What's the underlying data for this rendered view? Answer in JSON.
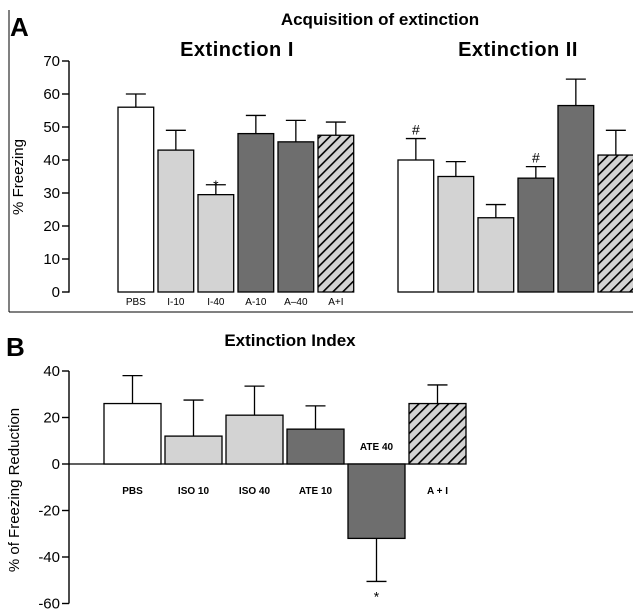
{
  "colors": {
    "white": "#ffffff",
    "light_gray": "#d3d3d3",
    "dark_gray": "#6e6e6e",
    "hatch_bg": "#d3d3d3",
    "stroke": "#000000"
  },
  "chart_data": [
    {
      "panel": "A",
      "type": "bar",
      "title": "Acquisition of extinction",
      "ylabel": "% Freezing",
      "ylim": [
        0,
        70
      ],
      "yticks": [
        0,
        10,
        20,
        30,
        40,
        50,
        60,
        70
      ],
      "groups": [
        {
          "name": "Extinction I",
          "bars": [
            {
              "category": "PBS",
              "value": 56,
              "error": 4,
              "fill": "white",
              "marker": ""
            },
            {
              "category": "I-10",
              "value": 43,
              "error": 6,
              "fill": "light_gray",
              "marker": ""
            },
            {
              "category": "I-40",
              "value": 29.5,
              "error": 3,
              "fill": "light_gray",
              "marker": "*"
            },
            {
              "category": "A-10",
              "value": 48,
              "error": 5.5,
              "fill": "dark_gray",
              "marker": ""
            },
            {
              "category": "A–40",
              "value": 45.5,
              "error": 6.5,
              "fill": "dark_gray",
              "marker": ""
            },
            {
              "category": "A+I",
              "value": 47.5,
              "error": 4,
              "fill": "hatch",
              "marker": ""
            }
          ]
        },
        {
          "name": "Extinction II",
          "bars": [
            {
              "category": "",
              "value": 40,
              "error": 6.5,
              "fill": "white",
              "marker": "#"
            },
            {
              "category": "",
              "value": 35,
              "error": 4.5,
              "fill": "light_gray",
              "marker": ""
            },
            {
              "category": "",
              "value": 22.5,
              "error": 4,
              "fill": "light_gray",
              "marker": ""
            },
            {
              "category": "",
              "value": 34.5,
              "error": 3.5,
              "fill": "dark_gray",
              "marker": "#"
            },
            {
              "category": "",
              "value": 56.5,
              "error": 8,
              "fill": "dark_gray",
              "marker": ""
            },
            {
              "category": "",
              "value": 41.5,
              "error": 7.5,
              "fill": "hatch",
              "marker": ""
            }
          ]
        }
      ]
    },
    {
      "panel": "B",
      "type": "bar",
      "title": "Extinction Index",
      "ylabel": "% of Freezing Reduction",
      "ylim": [
        -60,
        40
      ],
      "yticks": [
        -60,
        -40,
        -20,
        0,
        20,
        40
      ],
      "bars": [
        {
          "category": "PBS",
          "value": 26,
          "error": 12,
          "fill": "white",
          "marker": ""
        },
        {
          "category": "ISO 10",
          "value": 12,
          "error": 15.5,
          "fill": "light_gray",
          "marker": ""
        },
        {
          "category": "ISO 40",
          "value": 21,
          "error": 12.5,
          "fill": "light_gray",
          "marker": ""
        },
        {
          "category": "ATE 10",
          "value": 15,
          "error": 10,
          "fill": "dark_gray",
          "marker": ""
        },
        {
          "category": "ATE 40",
          "value": -32,
          "error": 18.5,
          "fill": "dark_gray",
          "marker": "*"
        },
        {
          "category": "A + I",
          "value": 26,
          "error": 8,
          "fill": "hatch",
          "marker": ""
        }
      ]
    }
  ]
}
